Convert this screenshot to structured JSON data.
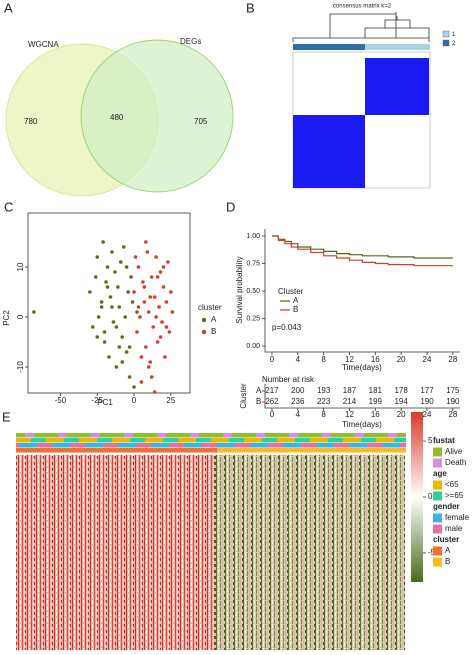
{
  "chart_data": [
    {
      "type": "venn",
      "label": "A",
      "sets": [
        "WGCNA",
        "DEGs"
      ],
      "values": [
        780,
        480,
        705
      ],
      "colors": [
        "#eef5c8",
        "#cfeec0"
      ]
    },
    {
      "type": "consensus",
      "label": "B",
      "title": "consensus matrix k=2",
      "legend": [
        {
          "name": "1",
          "color": "#a9d3ea"
        },
        {
          "name": "2",
          "color": "#2b6fa6"
        }
      ],
      "color": "#1a1af2"
    },
    {
      "type": "scatter",
      "label": "C",
      "xlabel": "PC1",
      "ylabel": "PC2",
      "legend_title": "cluster",
      "xlim": [
        -72,
        38
      ],
      "ylim": [
        -15.2,
        20.8
      ],
      "xticks": [
        -50,
        -25,
        0,
        25
      ],
      "yticks": [
        -10,
        0,
        10
      ],
      "series": [
        {
          "name": "A",
          "color": "#5a6e1c",
          "x": [
            -68,
            -30,
            -28,
            -26,
            -25,
            -24,
            -22,
            -21,
            -20,
            -19,
            -18,
            -17,
            -16,
            -15,
            -14,
            -13,
            -12,
            -11,
            -10,
            -9,
            -8,
            -7,
            -6,
            -5,
            -4,
            -3,
            -2,
            -1,
            0,
            2,
            -20,
            -15,
            -10,
            -5,
            -25,
            -18,
            -12,
            -8,
            -3,
            -22
          ],
          "y": [
            1,
            5,
            -2,
            8,
            12,
            0,
            3,
            15,
            -5,
            7,
            10,
            -8,
            4,
            13,
            -1,
            9,
            -10,
            6,
            2,
            11,
            -4,
            14,
            0,
            -7,
            5,
            -12,
            8,
            3,
            -14,
            1,
            -3,
            2,
            -6,
            10,
            -4,
            6,
            -2,
            -9,
            -6,
            2
          ]
        },
        {
          "name": "B",
          "color": "#d93a2e",
          "x": [
            0,
            2,
            3,
            4,
            5,
            6,
            7,
            8,
            9,
            10,
            11,
            12,
            13,
            14,
            15,
            16,
            17,
            18,
            19,
            20,
            21,
            22,
            23,
            24,
            25,
            26,
            5,
            8,
            12,
            15,
            18,
            3,
            10,
            20,
            7,
            14,
            22,
            1,
            11,
            16
          ],
          "y": [
            5,
            -3,
            10,
            0,
            -13,
            7,
            3,
            -6,
            13,
            1,
            -9,
            8,
            -2,
            4,
            12,
            -5,
            2,
            9,
            -1,
            6,
            -8,
            3,
            11,
            -3,
            5,
            1,
            -8,
            15,
            -12,
            0,
            -4,
            2,
            -10,
            10,
            6,
            -15,
            -2,
            12,
            4,
            8
          ]
        }
      ]
    },
    {
      "type": "survival",
      "label": "D",
      "xlabel": "Time(days)",
      "ylabel": "Survival probability",
      "legend_title": "Cluster",
      "annotation": "p=0.043",
      "xlim": [
        -1,
        29
      ],
      "ylim": [
        -0.05,
        1.05
      ],
      "xticks": [
        0,
        4,
        8,
        12,
        16,
        20,
        24,
        28
      ],
      "yticks": [
        {
          "value": 0,
          "label": "0.00"
        },
        {
          "value": 0.25,
          "label": "0.25"
        },
        {
          "value": 0.5,
          "label": "0.50"
        },
        {
          "value": 0.75,
          "label": "0.75"
        },
        {
          "value": 1,
          "label": "1.00"
        }
      ],
      "x": [
        0,
        1,
        2,
        3,
        4,
        6,
        8,
        10,
        12,
        14,
        16,
        18,
        20,
        22,
        24,
        26,
        28
      ],
      "series": [
        {
          "name": "A",
          "color": "#4a6b1a",
          "values": [
            1,
            0.97,
            0.95,
            0.93,
            0.9,
            0.88,
            0.86,
            0.84,
            0.83,
            0.82,
            0.82,
            0.81,
            0.81,
            0.8,
            0.8,
            0.8,
            0.8
          ]
        },
        {
          "name": "B",
          "color": "#d93a2e",
          "values": [
            1,
            0.96,
            0.93,
            0.9,
            0.88,
            0.85,
            0.82,
            0.8,
            0.78,
            0.76,
            0.75,
            0.74,
            0.74,
            0.73,
            0.73,
            0.73,
            0.73
          ]
        }
      ],
      "risk_table": {
        "title": "Number at risk",
        "ylabel": "Cluster",
        "xlabel": "Time(days)",
        "rows": [
          {
            "name": "A",
            "values": [
              217,
              200,
              193,
              187,
              181,
              178,
              177,
              175
            ]
          },
          {
            "name": "B",
            "values": [
              262,
              236,
              223,
              214,
              199,
              194,
              190,
              190
            ]
          }
        ]
      }
    },
    {
      "type": "heatmap",
      "label": "E",
      "scale": {
        "lim": [
          -7.6,
          7.6
        ],
        "ticks": [
          5,
          0,
          -5
        ],
        "colors": [
          "#4a6b1a",
          "#ffffff",
          "#d93a2e"
        ]
      },
      "annotations": [
        {
          "name": "fustat",
          "levels": [
            {
              "name": "Alive",
              "color": "#8fbf2f"
            },
            {
              "name": "Death",
              "color": "#d58fe0"
            }
          ]
        },
        {
          "name": "age",
          "levels": [
            {
              "name": "<65",
              "color": "#e6b800"
            },
            {
              "name": ">=65",
              "color": "#2fd0a0"
            }
          ]
        },
        {
          "name": "gender",
          "levels": [
            {
              "name": "female",
              "color": "#36b6e8"
            },
            {
              "name": "male",
              "color": "#e86fa0"
            }
          ]
        },
        {
          "name": "cluster",
          "levels": [
            {
              "name": "A",
              "color": "#f07030"
            },
            {
              "name": "B",
              "color": "#ffb820"
            }
          ]
        }
      ]
    }
  ]
}
